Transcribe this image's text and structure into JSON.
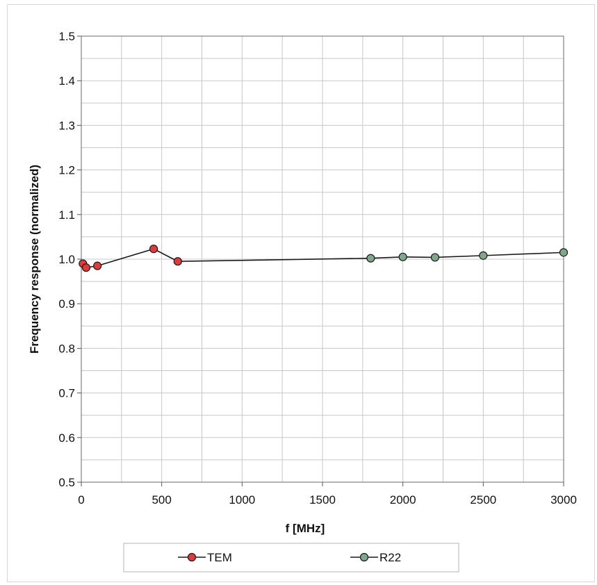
{
  "chart_data": {
    "type": "line",
    "title": "",
    "xlabel": "f [MHz]",
    "ylabel": "Frequency response (normalized)",
    "xlim": [
      0,
      3000
    ],
    "ylim": [
      0.5,
      1.5
    ],
    "x_ticks": [
      0,
      500,
      1000,
      1500,
      2000,
      2500,
      3000
    ],
    "x_tick_labels": [
      "0",
      "500",
      "1000",
      "1500",
      "2000",
      "2500",
      "3000"
    ],
    "y_ticks": [
      0.5,
      0.6,
      0.7,
      0.8,
      0.9,
      1.0,
      1.1,
      1.2,
      1.3,
      1.4,
      1.5
    ],
    "y_tick_labels": [
      "0.5",
      "0.6",
      "0.7",
      "0.8",
      "0.9",
      "1.0",
      "1.1",
      "1.2",
      "1.3",
      "1.4",
      "1.5"
    ],
    "x_minor_step": 250,
    "y_minor_step": 0.05,
    "grid": true,
    "legend_position": "bottom",
    "series": [
      {
        "name": "TEM",
        "color": "#e03a3a",
        "points": [
          [
            10,
            0.99
          ],
          [
            30,
            0.981
          ],
          [
            100,
            0.985
          ],
          [
            450,
            1.023
          ],
          [
            600,
            0.995
          ]
        ]
      },
      {
        "name": "R22",
        "color": "#7fa88a",
        "points": [
          [
            1800,
            1.002
          ],
          [
            2000,
            1.005
          ],
          [
            2200,
            1.004
          ],
          [
            2500,
            1.008
          ],
          [
            3000,
            1.015
          ]
        ]
      }
    ]
  }
}
